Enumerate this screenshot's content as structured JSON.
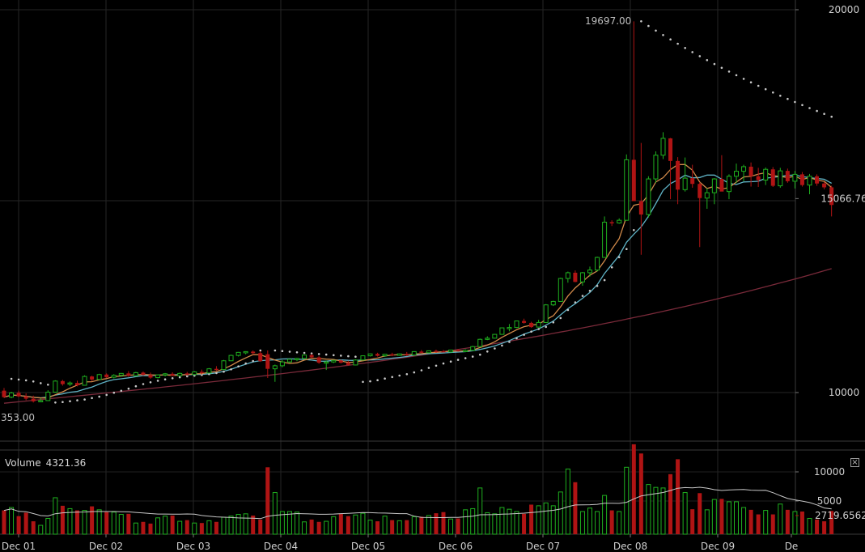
{
  "chart_data": {
    "type": "candlestick",
    "price_axis": {
      "ticks": [
        10000,
        15066.76,
        20000
      ]
    },
    "annotations": {
      "high_label": "19697.00",
      "low_label": "353.00"
    },
    "x_axis": {
      "tick_labels": [
        "Dec 01",
        "Dec 02",
        "Dec 03",
        "Dec 04",
        "Dec 05",
        "Dec 06",
        "Dec 07",
        "Dec 08",
        "Dec 09",
        "De"
      ]
    },
    "volume_panel": {
      "label": "Volume",
      "value": "4321.36",
      "axis_ticks": [
        "10000",
        "5000",
        "2719.6562"
      ]
    },
    "colors": {
      "up": "#1fb01f",
      "down": "#b01414",
      "ma_fast": "#d28a4a",
      "ma_mid": "#5fb3c6",
      "ma_slow": "#7a2a3a",
      "sar": "#c8c8c8"
    }
  },
  "ui": {
    "close_glyph": "☒"
  }
}
